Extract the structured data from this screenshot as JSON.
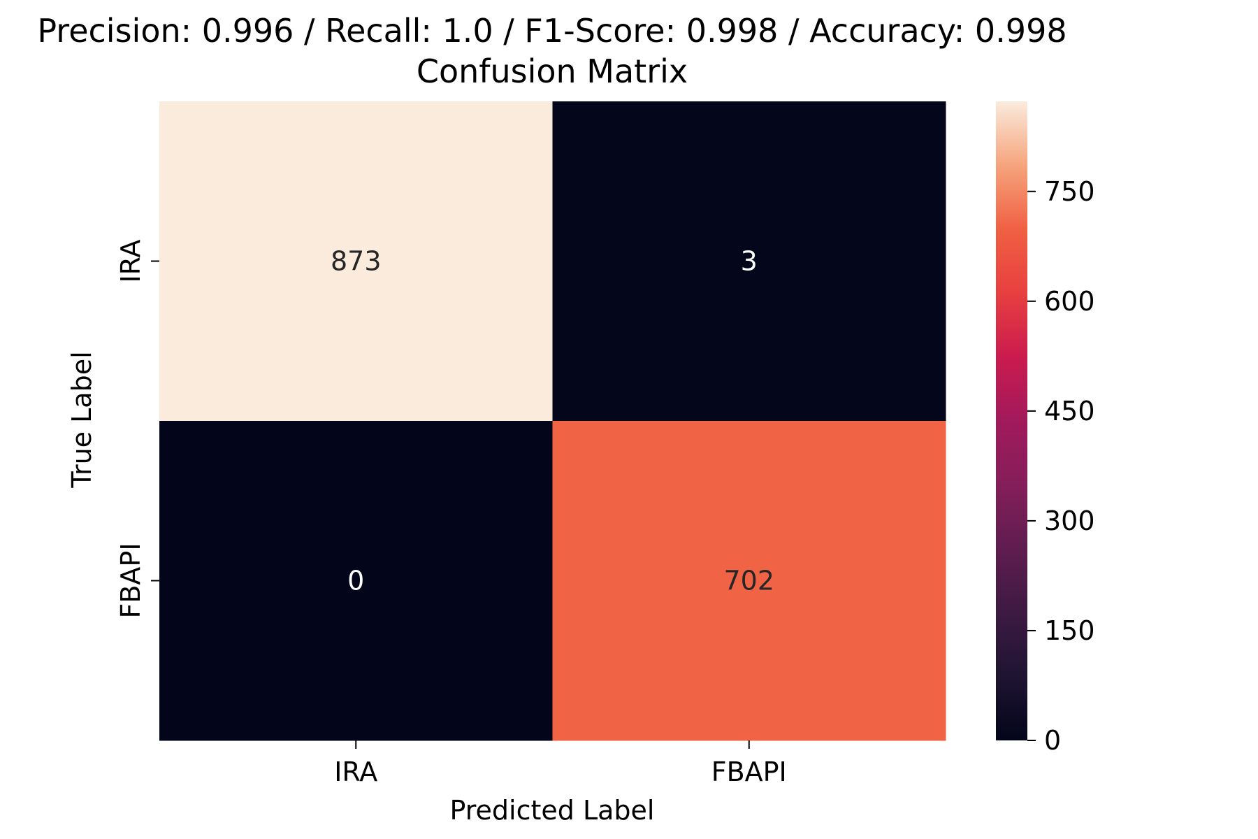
{
  "chart_data": {
    "type": "heatmap",
    "title": "Precision: 0.996 / Recall: 1.0 / F1-Score: 0.998 / Accuracy: 0.998",
    "subtitle": "Confusion Matrix",
    "xlabel": "Predicted Label",
    "ylabel": "True Label",
    "x_categories": [
      "IRA",
      "FBAPI"
    ],
    "y_categories": [
      "IRA",
      "FBAPI"
    ],
    "values": [
      [
        873,
        3
      ],
      [
        0,
        702
      ]
    ],
    "colorbar": {
      "range": [
        0,
        873
      ],
      "ticks": [
        "0",
        "150",
        "300",
        "450",
        "600",
        "750"
      ],
      "colormap": "rocket"
    }
  }
}
